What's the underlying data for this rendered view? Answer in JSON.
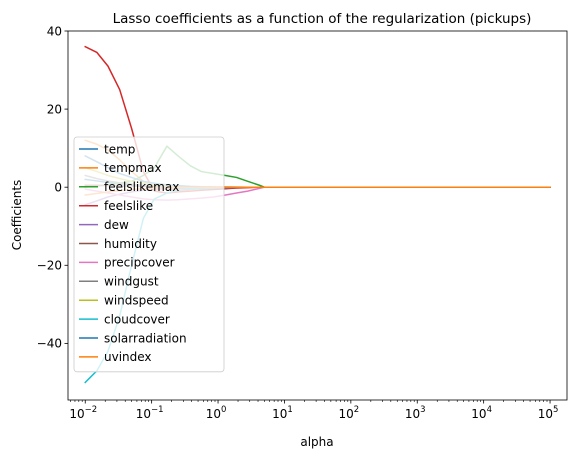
{
  "chart_data": {
    "type": "line",
    "title": "Lasso coefficients as a function of the regularization (pickups)",
    "xlabel": "alpha",
    "ylabel": "Coefficients",
    "xscale": "log",
    "xlim": [
      0.0055,
      180000
    ],
    "ylim": [
      -54.5,
      40
    ],
    "x_ticks": [
      {
        "base": "10",
        "exp": "−2"
      },
      {
        "base": "10",
        "exp": "−1"
      },
      {
        "base": "10",
        "exp": "0"
      },
      {
        "base": "10",
        "exp": "1"
      },
      {
        "base": "10",
        "exp": "2"
      },
      {
        "base": "10",
        "exp": "3"
      },
      {
        "base": "10",
        "exp": "4"
      },
      {
        "base": "10",
        "exp": "5"
      }
    ],
    "y_ticks": [
      "−40",
      "−20",
      "0",
      "20",
      "40"
    ],
    "legend_position": "lower-left",
    "x": [
      0.01,
      0.015,
      0.022,
      0.033,
      0.05,
      0.075,
      0.11,
      0.17,
      0.25,
      0.38,
      0.56,
      0.85,
      1.3,
      1.9,
      2.8,
      4.2,
      5,
      10,
      100,
      1000,
      10000,
      100000
    ],
    "series": [
      {
        "name": "temp",
        "color": "#1f77b4",
        "values": [
          2.0,
          1.6,
          1.2,
          0.9,
          0.6,
          0.4,
          0.3,
          0.2,
          0.1,
          0.05,
          0.03,
          0.02,
          0.01,
          0.005,
          0,
          0,
          0,
          0,
          0,
          0,
          0,
          0
        ]
      },
      {
        "name": "tempmax",
        "color": "#ff7f0e",
        "values": [
          12.0,
          11.0,
          9.5,
          7.0,
          4.0,
          1.5,
          0.0,
          -0.5,
          -0.8,
          -0.6,
          -0.4,
          -0.3,
          -0.2,
          -0.1,
          -0.05,
          0,
          0,
          0,
          0,
          0,
          0,
          0
        ]
      },
      {
        "name": "feelslikemax",
        "color": "#2ca02c",
        "values": [
          0.0,
          0.3,
          0.6,
          1.0,
          1.5,
          3.0,
          5.0,
          10.5,
          8.0,
          5.5,
          4.0,
          3.5,
          3.0,
          2.5,
          1.5,
          0.5,
          0,
          0,
          0,
          0,
          0,
          0
        ]
      },
      {
        "name": "feelslike",
        "color": "#d62728",
        "values": [
          36.0,
          34.5,
          31.0,
          25.0,
          15.0,
          4.0,
          -1.0,
          -1.5,
          -1.2,
          -1.0,
          -0.8,
          -0.6,
          -0.4,
          -0.2,
          -0.1,
          0,
          0,
          0,
          0,
          0,
          0,
          0
        ]
      },
      {
        "name": "dew",
        "color": "#9467bd",
        "values": [
          -4.5,
          -3.5,
          -2.5,
          -1.8,
          -1.2,
          -0.8,
          -0.5,
          -0.4,
          -0.3,
          -0.2,
          -0.15,
          -0.1,
          -0.05,
          0,
          0,
          0,
          0,
          0,
          0,
          0,
          0,
          0
        ]
      },
      {
        "name": "humidity",
        "color": "#8c564b",
        "values": [
          0.5,
          0.5,
          0.4,
          0.3,
          0.3,
          0.2,
          0.2,
          0.1,
          0.1,
          0.1,
          0.05,
          0.05,
          0.02,
          0,
          0,
          0,
          0,
          0,
          0,
          0,
          0,
          0
        ]
      },
      {
        "name": "precipcover",
        "color": "#e377c2",
        "values": [
          -0.5,
          -1.0,
          -1.5,
          -2.0,
          -2.5,
          -3.0,
          -3.2,
          -3.3,
          -3.2,
          -3.0,
          -2.8,
          -2.5,
          -2.0,
          -1.5,
          -1.0,
          -0.3,
          0,
          0,
          0,
          0,
          0,
          0
        ]
      },
      {
        "name": "windgust",
        "color": "#7f7f7f",
        "values": [
          3.0,
          2.2,
          1.6,
          1.1,
          0.8,
          0.5,
          0.3,
          0.2,
          0.1,
          0.05,
          0.02,
          0,
          0,
          0,
          0,
          0,
          0,
          0,
          0,
          0,
          0,
          0
        ]
      },
      {
        "name": "windspeed",
        "color": "#bcbd22",
        "values": [
          5.0,
          4.0,
          3.0,
          2.2,
          1.5,
          1.0,
          0.6,
          0.4,
          0.2,
          0.1,
          0.05,
          0,
          0,
          0,
          0,
          0,
          0,
          0,
          0,
          0,
          0,
          0
        ]
      },
      {
        "name": "cloudcover",
        "color": "#17becf",
        "values": [
          -50.0,
          -47.0,
          -42.0,
          -33.0,
          -20.0,
          -8.0,
          -3.0,
          -1.5,
          -0.8,
          -0.5,
          -0.3,
          -0.2,
          -0.1,
          0,
          0,
          0,
          0,
          0,
          0,
          0,
          0,
          0
        ]
      },
      {
        "name": "solarradiation",
        "color": "#1f77b4",
        "values": [
          8.0,
          6.5,
          5.0,
          3.5,
          2.5,
          1.5,
          1.0,
          0.6,
          0.4,
          0.2,
          0.1,
          0.05,
          0,
          0,
          0,
          0,
          0,
          0,
          0,
          0,
          0,
          0
        ]
      },
      {
        "name": "uvindex",
        "color": "#ff7f0e",
        "values": [
          -2.0,
          -1.6,
          -1.2,
          -0.9,
          -0.6,
          -0.4,
          -0.3,
          -0.2,
          -0.1,
          -0.05,
          0,
          0,
          0,
          0,
          0,
          0,
          0,
          0,
          0,
          0,
          0,
          0
        ]
      }
    ]
  }
}
